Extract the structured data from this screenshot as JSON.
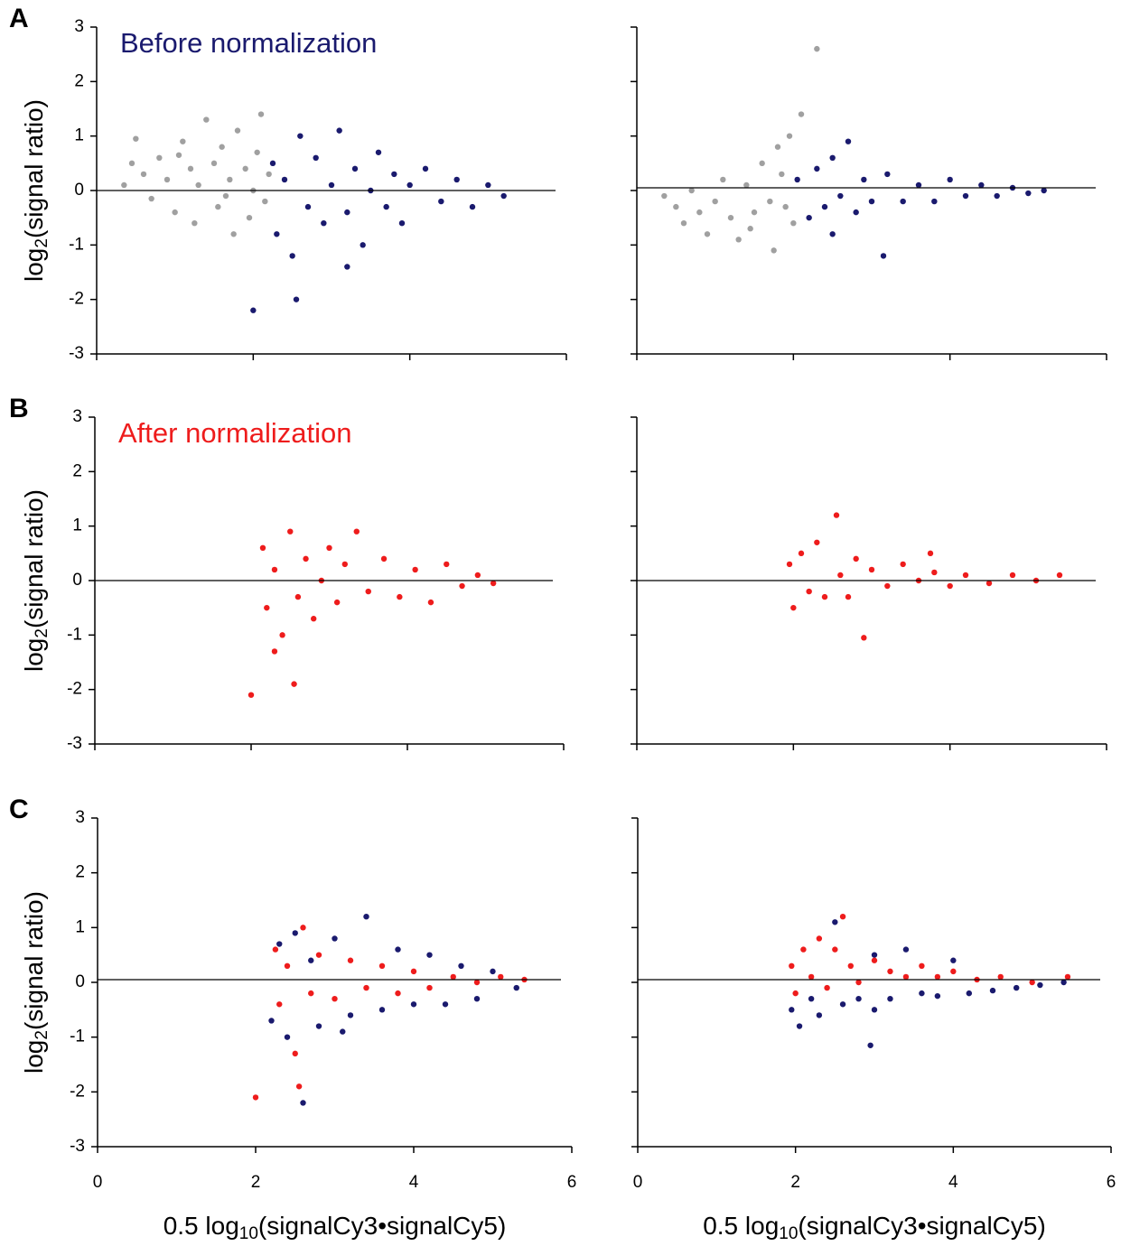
{
  "chart_data": [
    {
      "type": "scatter",
      "panel_label": "A",
      "annotation": {
        "text": "Before normalization",
        "color": "#1a1a6e"
      },
      "ylabel": [
        "log",
        "2",
        "(signal ratio)"
      ],
      "xlim": [
        0,
        6
      ],
      "ylim": [
        -3,
        3
      ],
      "xticks": [
        0,
        2,
        4,
        6
      ],
      "yticks": [
        -3,
        -2,
        -1,
        0,
        1,
        2,
        3
      ],
      "show_xticklabels": false,
      "show_yticklabels": true,
      "hline": 0,
      "series": [
        {
          "color": "#a0a0a0",
          "x": [
            0.35,
            0.5,
            0.6,
            0.7,
            0.8,
            0.9,
            1.0,
            1.1,
            1.2,
            1.25,
            1.3,
            1.4,
            1.5,
            1.55,
            1.6,
            1.7,
            1.75,
            1.8,
            1.9,
            1.95,
            2.0,
            2.05,
            2.1,
            2.15,
            2.2,
            0.45,
            1.05,
            1.65
          ],
          "values": [
            0.1,
            0.95,
            0.3,
            -0.15,
            0.6,
            0.2,
            -0.4,
            0.9,
            0.4,
            -0.6,
            0.1,
            1.3,
            0.5,
            -0.3,
            0.8,
            0.2,
            -0.8,
            1.1,
            0.4,
            -0.5,
            0.0,
            0.7,
            1.4,
            -0.2,
            0.3,
            0.5,
            0.65,
            -0.1
          ]
        },
        {
          "color": "#1a1a6e",
          "x": [
            2.25,
            2.3,
            2.4,
            2.5,
            2.6,
            2.7,
            2.8,
            2.9,
            3.0,
            3.1,
            3.2,
            3.3,
            3.4,
            3.5,
            3.6,
            3.7,
            3.8,
            3.9,
            4.0,
            4.2,
            4.4,
            4.6,
            4.8,
            5.0,
            5.2,
            2.0,
            2.55,
            3.2
          ],
          "values": [
            0.5,
            -0.8,
            0.2,
            -1.2,
            1.0,
            -0.3,
            0.6,
            -0.6,
            0.1,
            1.1,
            -0.4,
            0.4,
            -1.0,
            0.0,
            0.7,
            -0.3,
            0.3,
            -0.6,
            0.1,
            0.4,
            -0.2,
            0.2,
            -0.3,
            0.1,
            -0.1,
            -2.2,
            -2.0,
            -1.4
          ]
        }
      ]
    },
    {
      "type": "scatter",
      "xlim": [
        0,
        6
      ],
      "ylim": [
        -3,
        3
      ],
      "xticks": [
        0,
        2,
        4,
        6
      ],
      "yticks": [
        -3,
        -2,
        -1,
        0,
        1,
        2,
        3
      ],
      "show_xticklabels": false,
      "show_yticklabels": false,
      "hline": 0.05,
      "series": [
        {
          "color": "#a0a0a0",
          "x": [
            0.35,
            0.5,
            0.6,
            0.7,
            0.8,
            0.9,
            1.0,
            1.1,
            1.2,
            1.3,
            1.4,
            1.5,
            1.6,
            1.7,
            1.75,
            1.8,
            1.9,
            1.95,
            2.0,
            2.1,
            1.45,
            1.85,
            2.3
          ],
          "values": [
            -0.1,
            -0.3,
            -0.6,
            0.0,
            -0.4,
            -0.8,
            -0.2,
            0.2,
            -0.5,
            -0.9,
            0.1,
            -0.4,
            0.5,
            -0.2,
            -1.1,
            0.8,
            -0.3,
            1.0,
            -0.6,
            1.4,
            -0.7,
            0.3,
            2.6
          ]
        },
        {
          "color": "#1a1a6e",
          "x": [
            2.05,
            2.2,
            2.3,
            2.4,
            2.5,
            2.6,
            2.7,
            2.8,
            2.9,
            3.0,
            3.2,
            3.4,
            3.6,
            3.8,
            4.0,
            4.2,
            4.4,
            4.6,
            4.8,
            5.0,
            5.2,
            3.15,
            2.5
          ],
          "values": [
            0.2,
            -0.5,
            0.4,
            -0.3,
            0.6,
            -0.1,
            0.9,
            -0.4,
            0.2,
            -0.2,
            0.3,
            -0.2,
            0.1,
            -0.2,
            0.2,
            -0.1,
            0.1,
            -0.1,
            0.05,
            -0.05,
            0.0,
            -1.2,
            -0.8
          ]
        }
      ]
    },
    {
      "type": "scatter",
      "panel_label": "B",
      "annotation": {
        "text": "After normalization",
        "color": "#ee1c1c"
      },
      "ylabel": [
        "log",
        "2",
        "(signal ratio)"
      ],
      "xlim": [
        0,
        6
      ],
      "ylim": [
        -3,
        3
      ],
      "xticks": [
        0,
        2,
        4,
        6
      ],
      "yticks": [
        -3,
        -2,
        -1,
        0,
        1,
        2,
        3
      ],
      "show_xticklabels": false,
      "show_yticklabels": true,
      "hline": 0,
      "series": [
        {
          "color": "#ee1c1c",
          "x": [
            2.15,
            2.2,
            2.3,
            2.4,
            2.5,
            2.6,
            2.7,
            2.8,
            2.9,
            3.0,
            3.1,
            3.2,
            3.35,
            3.5,
            3.7,
            3.9,
            4.1,
            4.3,
            4.5,
            4.7,
            4.9,
            5.1,
            2.0,
            2.55,
            2.3
          ],
          "values": [
            0.6,
            -0.5,
            0.2,
            -1.0,
            0.9,
            -0.3,
            0.4,
            -0.7,
            0.0,
            0.6,
            -0.4,
            0.3,
            0.9,
            -0.2,
            0.4,
            -0.3,
            0.2,
            -0.4,
            0.3,
            -0.1,
            0.1,
            -0.05,
            -2.1,
            -1.9,
            -1.3
          ]
        }
      ]
    },
    {
      "type": "scatter",
      "xlim": [
        0,
        6
      ],
      "ylim": [
        -3,
        3
      ],
      "xticks": [
        0,
        2,
        4,
        6
      ],
      "yticks": [
        -3,
        -2,
        -1,
        0,
        1,
        2,
        3
      ],
      "show_xticklabels": false,
      "show_yticklabels": false,
      "hline": 0,
      "series": [
        {
          "color": "#ee1c1c",
          "x": [
            1.95,
            2.0,
            2.1,
            2.2,
            2.3,
            2.4,
            2.55,
            2.6,
            2.7,
            2.8,
            2.9,
            3.0,
            3.2,
            3.4,
            3.6,
            3.8,
            4.0,
            4.2,
            4.5,
            4.8,
            5.1,
            5.4,
            3.75
          ],
          "values": [
            0.3,
            -0.5,
            0.5,
            -0.2,
            0.7,
            -0.3,
            1.2,
            0.1,
            -0.3,
            0.4,
            -1.05,
            0.2,
            -0.1,
            0.3,
            0.0,
            0.15,
            -0.1,
            0.1,
            -0.05,
            0.1,
            0.0,
            0.1,
            0.5
          ]
        }
      ]
    },
    {
      "type": "scatter",
      "panel_label": "C",
      "ylabel": [
        "log",
        "2",
        "(signal ratio)"
      ],
      "xlabel": [
        "0.5 log",
        "10",
        "(signalCy3•signalCy5)"
      ],
      "xlim": [
        0,
        6
      ],
      "ylim": [
        -3,
        3
      ],
      "xticks": [
        0,
        2,
        4,
        6
      ],
      "yticks": [
        -3,
        -2,
        -1,
        0,
        1,
        2,
        3
      ],
      "show_xticklabels": true,
      "show_yticklabels": true,
      "hline": 0.05,
      "series": [
        {
          "color": "#1a1a6e",
          "x": [
            2.2,
            2.3,
            2.4,
            2.5,
            2.6,
            2.7,
            2.8,
            3.0,
            3.2,
            3.4,
            3.6,
            3.8,
            4.0,
            4.2,
            4.4,
            4.6,
            4.8,
            5.0,
            5.3,
            3.1
          ],
          "values": [
            -0.7,
            0.7,
            -1.0,
            0.9,
            -2.2,
            0.4,
            -0.8,
            0.8,
            -0.6,
            1.2,
            -0.5,
            0.6,
            -0.4,
            0.5,
            -0.4,
            0.3,
            -0.3,
            0.2,
            -0.1,
            -0.9
          ]
        },
        {
          "color": "#ee1c1c",
          "x": [
            2.0,
            2.25,
            2.3,
            2.4,
            2.5,
            2.6,
            2.7,
            2.8,
            3.0,
            3.2,
            3.4,
            3.6,
            3.8,
            4.0,
            4.2,
            4.5,
            4.8,
            5.1,
            5.4,
            2.55
          ],
          "values": [
            -2.1,
            0.6,
            -0.4,
            0.3,
            -1.3,
            1.0,
            -0.2,
            0.5,
            -0.3,
            0.4,
            -0.1,
            0.3,
            -0.2,
            0.2,
            -0.1,
            0.1,
            0.0,
            0.1,
            0.05,
            -1.9
          ]
        }
      ]
    },
    {
      "type": "scatter",
      "xlabel": [
        "0.5 log",
        "10",
        "(signalCy3•signalCy5)"
      ],
      "xlim": [
        0,
        6
      ],
      "ylim": [
        -3,
        3
      ],
      "xticks": [
        0,
        2,
        4,
        6
      ],
      "yticks": [
        -3,
        -2,
        -1,
        0,
        1,
        2,
        3
      ],
      "show_xticklabels": true,
      "show_yticklabels": false,
      "hline": 0.05,
      "series": [
        {
          "color": "#1a1a6e",
          "x": [
            1.95,
            2.05,
            2.2,
            2.3,
            2.5,
            2.6,
            2.8,
            3.0,
            3.0,
            3.2,
            3.4,
            3.6,
            3.8,
            4.0,
            4.2,
            4.5,
            4.8,
            5.1,
            5.4,
            2.95
          ],
          "values": [
            -0.5,
            -0.8,
            -0.3,
            -0.6,
            1.1,
            -0.4,
            -0.3,
            -0.5,
            0.5,
            -0.3,
            0.6,
            -0.2,
            -0.25,
            0.4,
            -0.2,
            -0.15,
            -0.1,
            -0.05,
            0.0,
            -1.15
          ]
        },
        {
          "color": "#ee1c1c",
          "x": [
            1.95,
            2.0,
            2.1,
            2.2,
            2.3,
            2.4,
            2.6,
            2.7,
            2.8,
            3.0,
            3.2,
            3.4,
            3.6,
            3.8,
            4.0,
            4.3,
            4.6,
            5.0,
            5.45,
            2.5
          ],
          "values": [
            0.3,
            -0.2,
            0.6,
            0.1,
            0.8,
            -0.1,
            1.2,
            0.3,
            0.0,
            0.4,
            0.2,
            0.1,
            0.3,
            0.1,
            0.2,
            0.05,
            0.1,
            0.0,
            0.1,
            0.6
          ]
        }
      ]
    }
  ]
}
